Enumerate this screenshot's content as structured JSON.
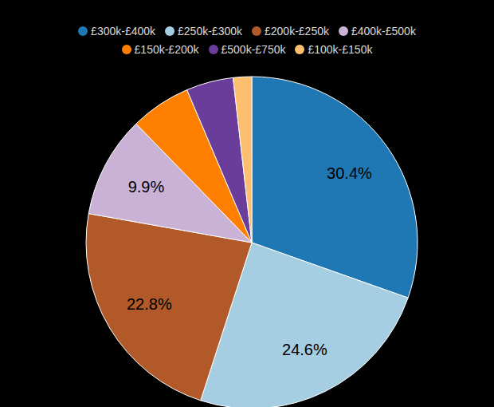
{
  "chart_data": {
    "type": "pie",
    "categories": [
      "£300k-£400k",
      "£250k-£300k",
      "£200k-£250k",
      "£400k-£500k",
      "£150k-£200k",
      "£500k-£750k",
      "£100k-£150k"
    ],
    "values": [
      30.4,
      24.6,
      22.8,
      9.9,
      5.9,
      4.6,
      1.8
    ],
    "value_labels": [
      "30.4%",
      "24.6%",
      "22.8%",
      "9.9%",
      null,
      null,
      null
    ],
    "data_labels": true,
    "colors": [
      "#1f78b4",
      "#a6cee3",
      "#b15928",
      "#cab2d6",
      "#ff7f00",
      "#6a3d9a",
      "#fdbf6f"
    ],
    "legend": "top"
  }
}
